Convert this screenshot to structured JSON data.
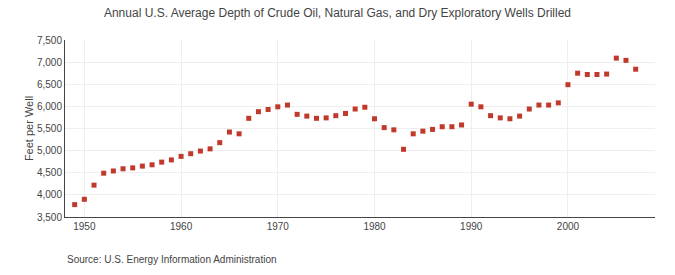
{
  "chart_data": {
    "type": "scatter",
    "title": "Annual U.S. Average Depth of Crude Oil, Natural Gas, and Dry Exploratory Wells Drilled",
    "ylabel": "Feet per Well",
    "annotations": [
      "Source: U.S. Energy Information Administration"
    ],
    "x": [
      1949,
      1950,
      1951,
      1952,
      1953,
      1954,
      1955,
      1956,
      1957,
      1958,
      1959,
      1960,
      1961,
      1962,
      1963,
      1964,
      1965,
      1966,
      1967,
      1968,
      1969,
      1970,
      1971,
      1972,
      1973,
      1974,
      1975,
      1976,
      1977,
      1978,
      1979,
      1980,
      1981,
      1982,
      1983,
      1984,
      1985,
      1986,
      1987,
      1988,
      1989,
      1990,
      1991,
      1992,
      1993,
      1994,
      1995,
      1996,
      1997,
      1998,
      1999,
      2000,
      2001,
      2002,
      2003,
      2004,
      2005,
      2006,
      2007
    ],
    "values": [
      3780,
      3900,
      4220,
      4490,
      4540,
      4590,
      4610,
      4650,
      4680,
      4740,
      4790,
      4870,
      4930,
      4990,
      5040,
      5180,
      5420,
      5380,
      5730,
      5880,
      5930,
      5990,
      6030,
      5820,
      5780,
      5730,
      5740,
      5790,
      5840,
      5940,
      5980,
      5720,
      5520,
      5470,
      5030,
      5380,
      5440,
      5480,
      5540,
      5540,
      5580,
      6050,
      5990,
      5790,
      5740,
      5720,
      5780,
      5940,
      6030,
      6030,
      6080,
      6490,
      6750,
      6720,
      6720,
      6730,
      7090,
      7040,
      6840
    ],
    "color": "#c0392b",
    "marker": "square",
    "xlim": [
      1948,
      2009
    ],
    "xticks": [
      1950,
      1960,
      1970,
      1980,
      1990,
      2000
    ],
    "ylim": [
      3500,
      7500
    ],
    "yticks": [
      {
        "value": 3500,
        "label": "3,500"
      },
      {
        "value": 4000,
        "label": "4,000"
      },
      {
        "value": 4500,
        "label": "4,500"
      },
      {
        "value": 5000,
        "label": "5,000"
      },
      {
        "value": 5500,
        "label": "5,500"
      },
      {
        "value": 6000,
        "label": "6,000"
      },
      {
        "value": 6500,
        "label": "6,500"
      },
      {
        "value": 7000,
        "label": "7,000"
      },
      {
        "value": 7500,
        "label": "7,500"
      }
    ],
    "grid": true
  }
}
